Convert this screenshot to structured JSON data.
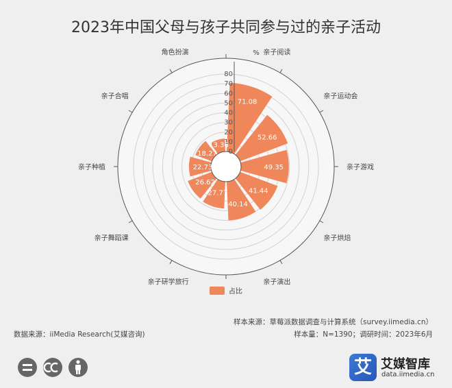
{
  "title": "2023年中国父母与孩子共同参与过的亲子活动",
  "chart_data": {
    "type": "bar",
    "polar": true,
    "categories": [
      "亲子阅读",
      "亲子运动会",
      "亲子游戏",
      "亲子烘焙",
      "亲子演出",
      "亲子研学旅行",
      "亲子舞蹈课",
      "亲子种植",
      "亲子合唱",
      "角色扮演"
    ],
    "series": [
      {
        "name": "占比",
        "values": [
          71.08,
          52.66,
          49.35,
          41.44,
          40.14,
          27.77,
          26.62,
          22.73,
          18.27,
          13.36
        ]
      }
    ],
    "radial_ticks": [
      "0",
      "10",
      "20",
      "30",
      "40",
      "50",
      "60",
      "70",
      "80"
    ],
    "radial_max": 80,
    "unit_label": "%",
    "bar_color": "#f0875a",
    "legend_position": "bottom"
  },
  "footer": {
    "source_left": "数据来源：iiMedia Research(艾媒咨询)",
    "sample_source": "样本来源：草莓派数据调查与计算系统（survey.iimedia.cn）",
    "sample_meta": "样本量：N=1390；调研时间：2023年6月"
  },
  "brand": {
    "logo_char": "艾",
    "name": "艾媒智库",
    "url": "data.iimedia.cn"
  },
  "icons": [
    "cc-equal-icon",
    "cc-icon",
    "cc-person-icon"
  ]
}
